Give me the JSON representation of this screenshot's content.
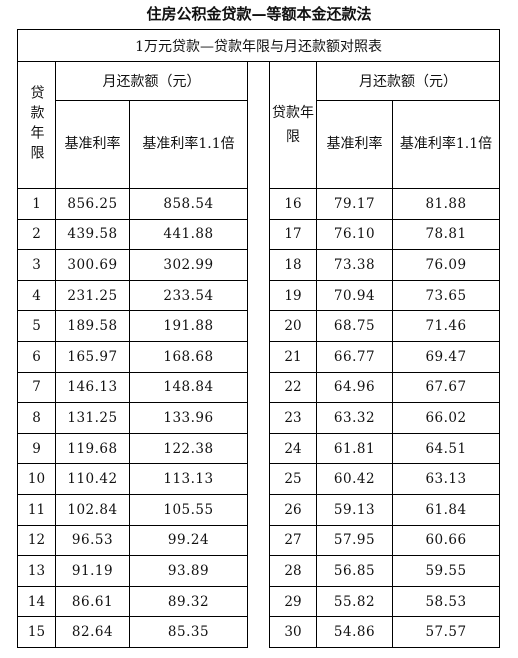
{
  "title": "住房公积金贷款—等额本金还款法",
  "table": {
    "subtitle": "1万元贷款—贷款年限与月还款额对照表",
    "year_header": "贷款年限",
    "year_header_right": "贷款年限",
    "group_header": "月还款额（元）",
    "col_base": "基准利率",
    "col_base_11": "基准利率1.1倍",
    "rows_left": [
      {
        "year": "1",
        "base": "856.25",
        "base11": "858.54"
      },
      {
        "year": "2",
        "base": "439.58",
        "base11": "441.88"
      },
      {
        "year": "3",
        "base": "300.69",
        "base11": "302.99"
      },
      {
        "year": "4",
        "base": "231.25",
        "base11": "233.54"
      },
      {
        "year": "5",
        "base": "189.58",
        "base11": "191.88"
      },
      {
        "year": "6",
        "base": "165.97",
        "base11": "168.68"
      },
      {
        "year": "7",
        "base": "146.13",
        "base11": "148.84"
      },
      {
        "year": "8",
        "base": "131.25",
        "base11": "133.96"
      },
      {
        "year": "9",
        "base": "119.68",
        "base11": "122.38"
      },
      {
        "year": "10",
        "base": "110.42",
        "base11": "113.13"
      },
      {
        "year": "11",
        "base": "102.84",
        "base11": "105.55"
      },
      {
        "year": "12",
        "base": "96.53",
        "base11": "99.24"
      },
      {
        "year": "13",
        "base": "91.19",
        "base11": "93.89"
      },
      {
        "year": "14",
        "base": "86.61",
        "base11": "89.32"
      },
      {
        "year": "15",
        "base": "82.64",
        "base11": "85.35"
      }
    ],
    "rows_right": [
      {
        "year": "16",
        "base": "79.17",
        "base11": "81.88"
      },
      {
        "year": "17",
        "base": "76.10",
        "base11": "78.81"
      },
      {
        "year": "18",
        "base": "73.38",
        "base11": "76.09"
      },
      {
        "year": "19",
        "base": "70.94",
        "base11": "73.65"
      },
      {
        "year": "20",
        "base": "68.75",
        "base11": "71.46"
      },
      {
        "year": "21",
        "base": "66.77",
        "base11": "69.47"
      },
      {
        "year": "22",
        "base": "64.96",
        "base11": "67.67"
      },
      {
        "year": "23",
        "base": "63.32",
        "base11": "66.02"
      },
      {
        "year": "24",
        "base": "61.81",
        "base11": "64.51"
      },
      {
        "year": "25",
        "base": "60.42",
        "base11": "63.13"
      },
      {
        "year": "26",
        "base": "59.13",
        "base11": "61.84"
      },
      {
        "year": "27",
        "base": "57.95",
        "base11": "60.66"
      },
      {
        "year": "28",
        "base": "56.85",
        "base11": "59.55"
      },
      {
        "year": "29",
        "base": "55.82",
        "base11": "58.53"
      },
      {
        "year": "30",
        "base": "54.86",
        "base11": "57.57"
      }
    ]
  }
}
